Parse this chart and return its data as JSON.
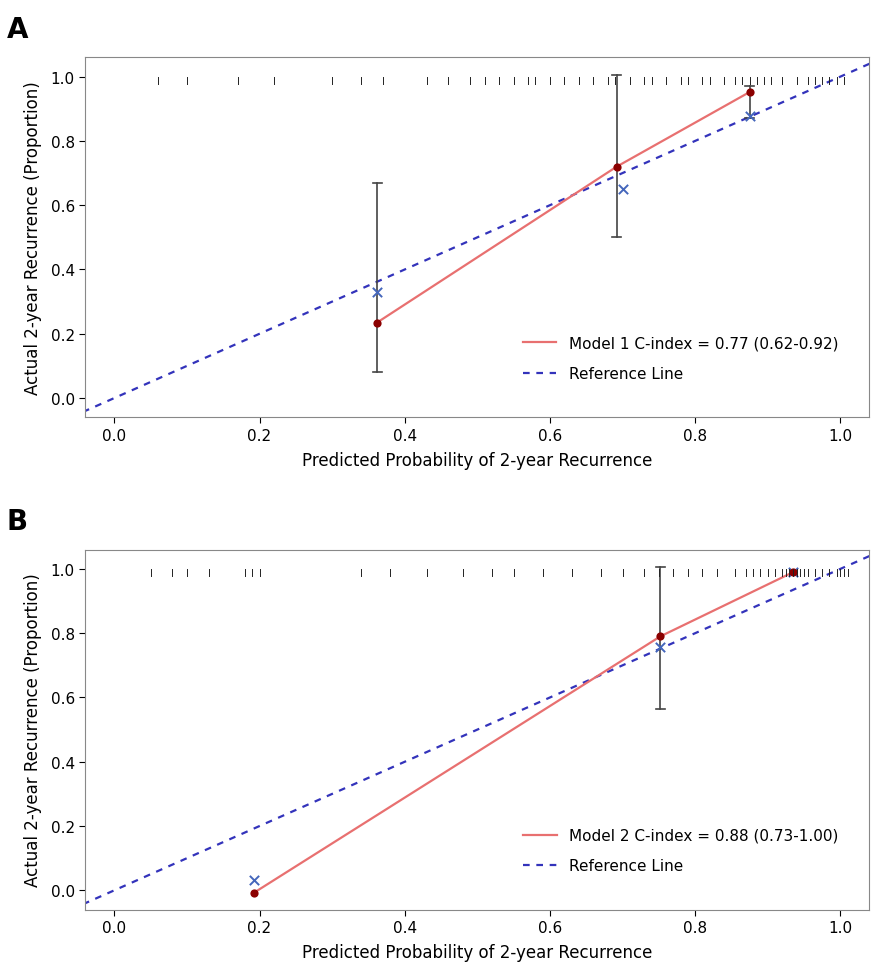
{
  "panel_A": {
    "label": "A",
    "legend_text": "Model 1 C-index = 0.77 (0.62-0.92)",
    "ref_legend_text": "Reference Line",
    "xlim": [
      -0.04,
      1.04
    ],
    "ylim": [
      -0.06,
      1.06
    ],
    "xlabel": "Predicted Probability of 2-year Recurrence",
    "ylabel": "Actual 2-year Recurrence (Proportion)",
    "xticks": [
      0.0,
      0.2,
      0.4,
      0.6,
      0.8,
      1.0
    ],
    "yticks": [
      0.0,
      0.2,
      0.4,
      0.6,
      0.8,
      1.0
    ],
    "red_dots": {
      "x": [
        0.362,
        0.692,
        0.875
      ],
      "y": [
        0.235,
        0.72,
        0.952
      ],
      "ci_lo": [
        0.08,
        0.5,
        0.87
      ],
      "ci_hi": [
        0.67,
        1.005,
        0.972
      ]
    },
    "cross_marks": {
      "x": [
        0.362,
        0.7,
        0.875
      ],
      "y": [
        0.33,
        0.65,
        0.878
      ]
    },
    "rug_x": [
      0.06,
      0.1,
      0.17,
      0.22,
      0.3,
      0.34,
      0.37,
      0.43,
      0.46,
      0.49,
      0.51,
      0.53,
      0.55,
      0.57,
      0.58,
      0.6,
      0.62,
      0.64,
      0.66,
      0.68,
      0.69,
      0.71,
      0.73,
      0.74,
      0.76,
      0.78,
      0.79,
      0.81,
      0.82,
      0.84,
      0.855,
      0.865,
      0.875,
      0.885,
      0.895,
      0.905,
      0.92,
      0.94,
      0.955,
      0.965,
      0.975,
      0.985,
      0.995,
      1.005
    ]
  },
  "panel_B": {
    "label": "B",
    "legend_text": "Model 2 C-index = 0.88 (0.73-1.00)",
    "ref_legend_text": "Reference Line",
    "xlim": [
      -0.04,
      1.04
    ],
    "ylim": [
      -0.06,
      1.06
    ],
    "xlabel": "Predicted Probability of 2-year Recurrence",
    "ylabel": "Actual 2-year Recurrence (Proportion)",
    "xticks": [
      0.0,
      0.2,
      0.4,
      0.6,
      0.8,
      1.0
    ],
    "yticks": [
      0.0,
      0.2,
      0.4,
      0.6,
      0.8,
      1.0
    ],
    "red_dots": {
      "x": [
        0.192,
        0.752,
        0.935
      ],
      "y": [
        -0.008,
        0.79,
        0.99
      ],
      "ci_lo": [
        -0.008,
        0.565,
        0.988
      ],
      "ci_hi": [
        -0.008,
        1.005,
        0.99
      ]
    },
    "cross_marks": {
      "x": [
        0.192,
        0.752,
        0.935
      ],
      "y": [
        0.032,
        0.758,
        0.99
      ]
    },
    "rug_x": [
      0.05,
      0.08,
      0.1,
      0.13,
      0.18,
      0.19,
      0.2,
      0.34,
      0.38,
      0.43,
      0.48,
      0.52,
      0.55,
      0.59,
      0.63,
      0.67,
      0.7,
      0.73,
      0.75,
      0.77,
      0.79,
      0.81,
      0.83,
      0.855,
      0.87,
      0.88,
      0.89,
      0.9,
      0.91,
      0.92,
      0.925,
      0.93,
      0.935,
      0.94,
      0.945,
      0.95,
      0.955,
      0.965,
      0.975,
      0.985,
      0.995,
      1.0,
      1.005,
      1.01
    ]
  },
  "line_color": "#E87070",
  "ref_line_color": "#3333BB",
  "dot_color": "#8B0000",
  "cross_color": "#4466BB",
  "errorbar_color": "#444444",
  "rug_color": "#222222",
  "bg_color": "#FFFFFF",
  "spine_color": "#888888",
  "legend_fontsize": 11,
  "axis_fontsize": 12,
  "label_fontsize": 20,
  "tick_fontsize": 11
}
